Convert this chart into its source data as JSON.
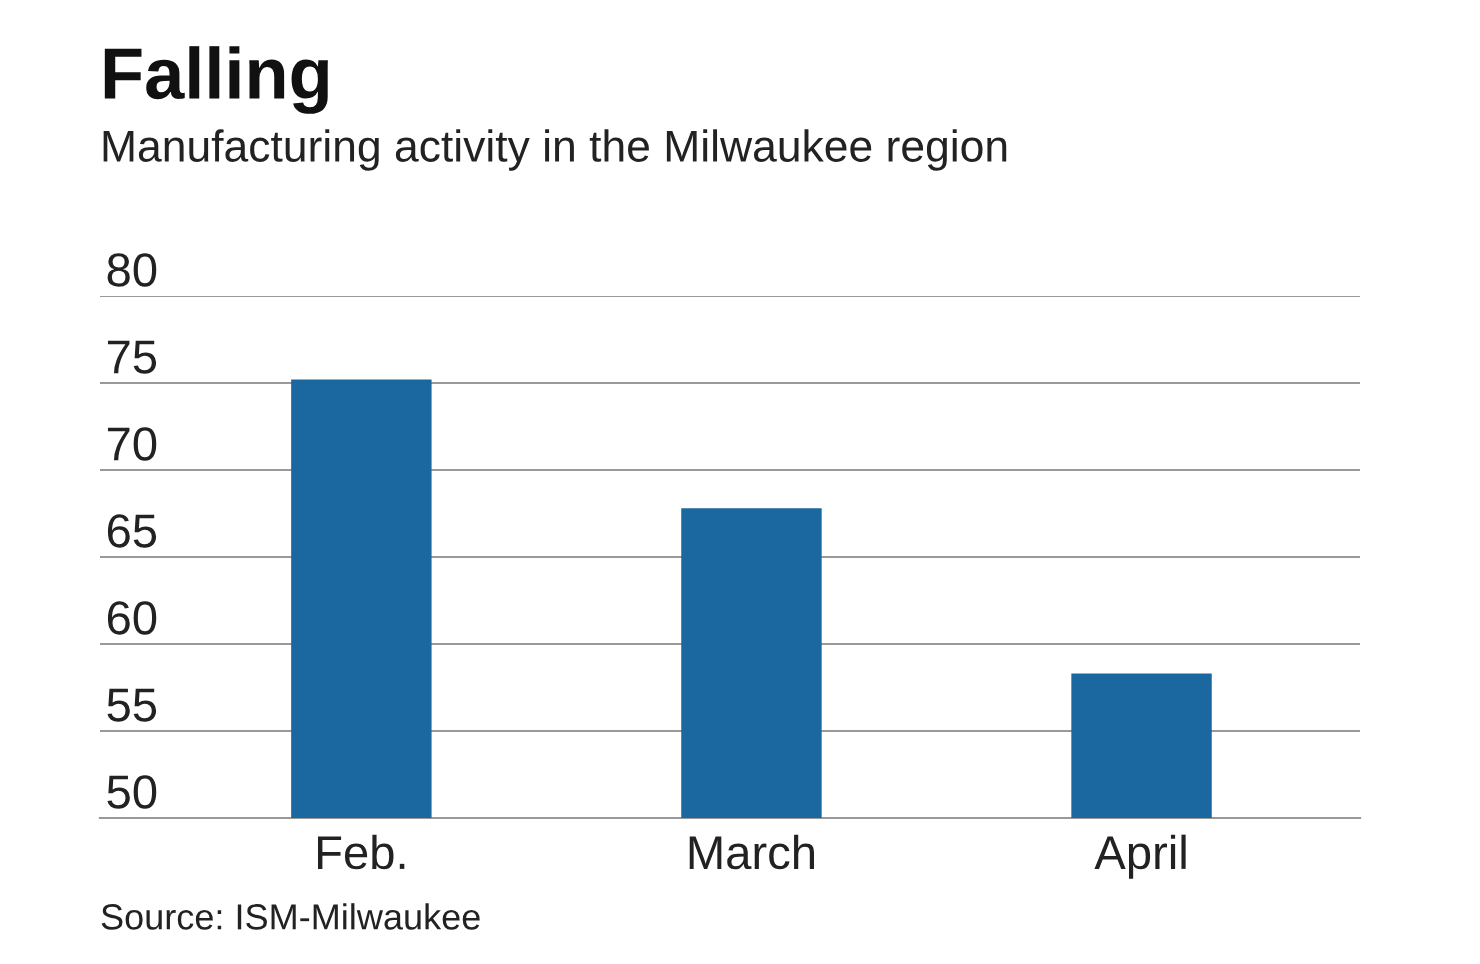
{
  "chart_data": {
    "type": "bar",
    "title": "Falling",
    "subtitle": "Manufacturing activity in the Milwaukee region",
    "categories": [
      "Feb.",
      "March",
      "April"
    ],
    "values": [
      75.2,
      67.8,
      58.3
    ],
    "color": "#1b68a0",
    "ylim": [
      50,
      80
    ],
    "yticks": [
      50,
      55,
      60,
      65,
      70,
      75,
      80
    ],
    "grid": "y",
    "annotations": [
      "Source: ISM-Milwaukee"
    ]
  }
}
